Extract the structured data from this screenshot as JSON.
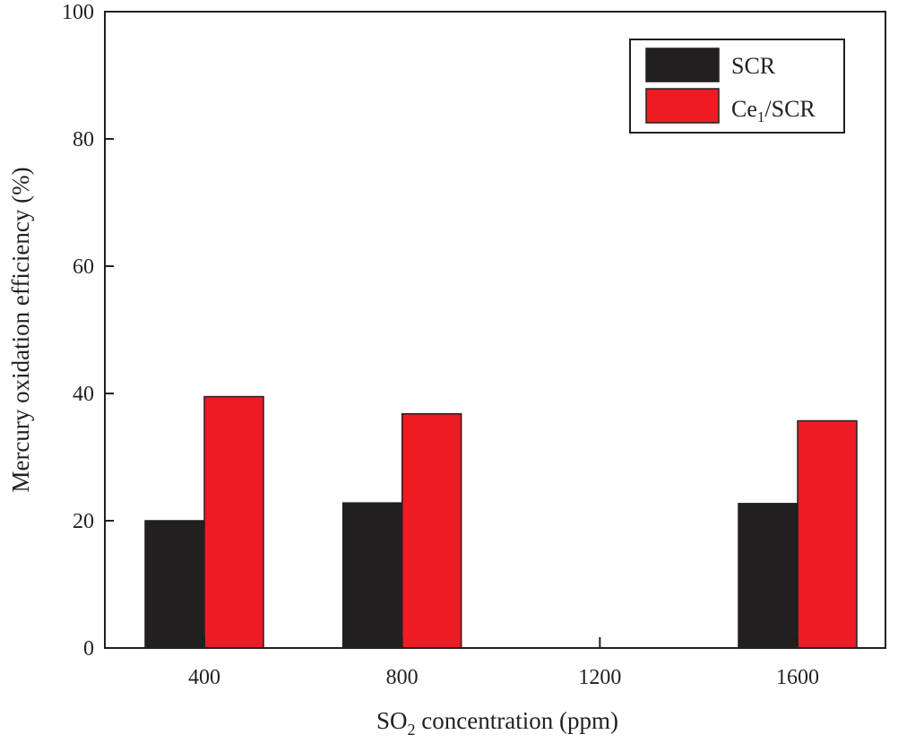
{
  "chart_data": {
    "type": "bar",
    "categories": [
      "400",
      "800",
      "1200",
      "1600"
    ],
    "series": [
      {
        "name": "SCR",
        "values": [
          20.0,
          22.8,
          null,
          22.7
        ],
        "color": "#231f20"
      },
      {
        "name": "Ce1/SCR",
        "name_main": "Ce",
        "name_sub": "1",
        "name_rest": "/SCR",
        "values": [
          39.5,
          36.8,
          null,
          35.7
        ],
        "color": "#ed1c24"
      }
    ],
    "xlabel": "SO2 concentration (ppm)",
    "xlabel_main": "SO",
    "xlabel_sub": "2",
    "xlabel_rest": " concentration (ppm)",
    "ylabel": "Mercury oxidation efficiency (%)",
    "ylim": [
      0,
      100
    ],
    "yticks": [
      0,
      20,
      40,
      60,
      80,
      100
    ],
    "grid": false,
    "legend_position": "top-right"
  }
}
